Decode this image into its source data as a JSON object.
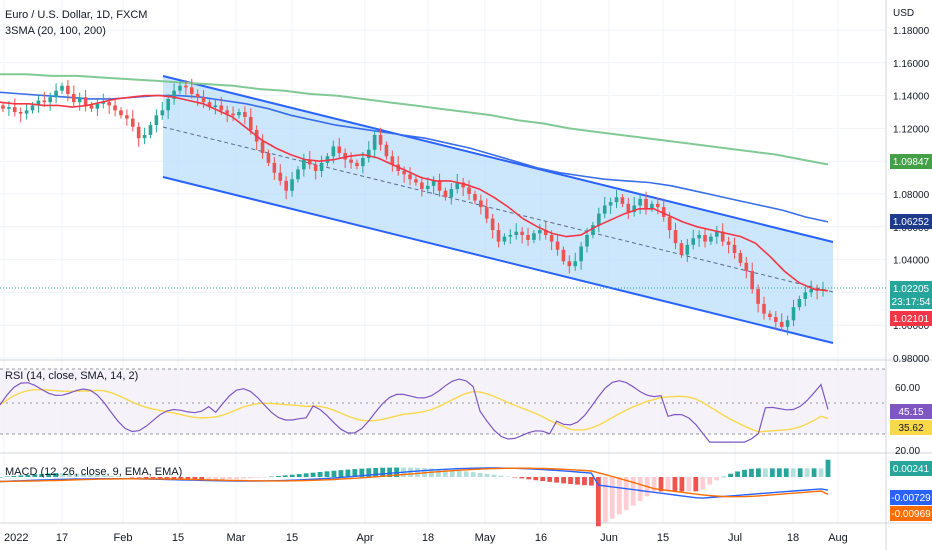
{
  "header": {
    "title": "Euro / U.S. Dollar, 1D, FXCM",
    "indicator": "3SMA (20, 100, 200)",
    "currency": "USD"
  },
  "rsi_panel": {
    "title": "RSI (14, close, SMA, 14, 2)",
    "ticks": [
      "60.00",
      "20.00"
    ],
    "value_badge": "45.15",
    "ma_badge": "35.62"
  },
  "macd_panel": {
    "title": "MACD (12, 26, close, 9, EMA, EMA)",
    "hist_badge": "0.00241",
    "macd_badge": "-0.00729",
    "signal_badge": "-0.00969"
  },
  "price_badges": {
    "sma200": "1.09847",
    "sma100": "1.06252",
    "last": "1.02205",
    "countdown": "23:17:54",
    "sma20": "1.02101"
  },
  "time_axis": [
    "2022",
    "17",
    "Feb",
    "15",
    "Mar",
    "15",
    "Apr",
    "18",
    "May",
    "16",
    "Jun",
    "15",
    "Jul",
    "18",
    "Aug"
  ],
  "colors": {
    "up": "#26a69a",
    "down": "#ef5350",
    "sma20": "#f23645",
    "sma100": "#3a6ee8",
    "sma200": "#81c995",
    "channel": "#2962ff",
    "rsi": "#7e57c2",
    "rsi_ma": "#f9d84a",
    "macd": "#2962ff",
    "signal": "#ff6d00"
  },
  "chart_data": {
    "type": "candlestick",
    "symbol": "EURUSD",
    "price_axis_ticks": [
      1.18,
      1.16,
      1.14,
      1.12,
      1.1,
      1.08,
      1.06,
      1.04,
      1.02,
      1.0,
      0.98
    ],
    "price_range": [
      0.978,
      1.186
    ],
    "candles_close_approx": [
      1.132,
      1.133,
      1.13,
      1.129,
      1.131,
      1.134,
      1.137,
      1.136,
      1.139,
      1.143,
      1.146,
      1.141,
      1.136,
      1.139,
      1.134,
      1.132,
      1.135,
      1.136,
      1.134,
      1.131,
      1.128,
      1.126,
      1.121,
      1.114,
      1.116,
      1.122,
      1.128,
      1.131,
      1.138,
      1.143,
      1.146,
      1.145,
      1.141,
      1.139,
      1.136,
      1.133,
      1.134,
      1.131,
      1.129,
      1.128,
      1.13,
      1.127,
      1.119,
      1.112,
      1.105,
      1.099,
      1.093,
      1.088,
      1.082,
      1.089,
      1.095,
      1.101,
      1.098,
      1.094,
      1.099,
      1.103,
      1.109,
      1.105,
      1.101,
      1.099,
      1.097,
      1.102,
      1.107,
      1.116,
      1.11,
      1.103,
      1.098,
      1.094,
      1.092,
      1.089,
      1.087,
      1.083,
      1.085,
      1.088,
      1.082,
      1.078,
      1.083,
      1.087,
      1.084,
      1.08,
      1.076,
      1.072,
      1.065,
      1.058,
      1.051,
      1.054,
      1.055,
      1.057,
      1.055,
      1.052,
      1.056,
      1.058,
      1.055,
      1.051,
      1.046,
      1.039,
      1.036,
      1.039,
      1.048,
      1.055,
      1.061,
      1.068,
      1.073,
      1.075,
      1.078,
      1.074,
      1.069,
      1.073,
      1.077,
      1.071,
      1.074,
      1.072,
      1.066,
      1.058,
      1.05,
      1.043,
      1.049,
      1.053,
      1.055,
      1.051,
      1.054,
      1.057,
      1.051,
      1.049,
      1.044,
      1.038,
      1.033,
      1.022,
      1.013,
      1.007,
      1.005,
      1.002,
      0.999,
      1.003,
      1.011,
      1.016,
      1.02,
      1.022,
      1.021,
      1.022
    ],
    "sma20_approx": [
      1.136,
      1.135,
      1.135,
      1.134,
      1.134,
      1.133,
      1.134,
      1.136,
      1.138,
      1.139,
      1.14,
      1.14,
      1.139,
      1.137,
      1.135,
      1.131,
      1.127,
      1.12,
      1.113,
      1.108,
      1.104,
      1.101,
      1.1,
      1.101,
      1.103,
      1.104,
      1.102,
      1.098,
      1.094,
      1.09,
      1.088,
      1.088,
      1.086,
      1.083,
      1.078,
      1.072,
      1.065,
      1.06,
      1.056,
      1.054,
      1.055,
      1.06,
      1.064,
      1.068,
      1.071,
      1.071,
      1.067,
      1.063,
      1.06,
      1.058,
      1.056,
      1.054,
      1.05,
      1.042,
      1.033,
      1.026,
      1.022,
      1.021
    ],
    "sma100_approx": [
      1.142,
      1.141,
      1.14,
      1.139,
      1.138,
      1.138,
      1.139,
      1.14,
      1.14,
      1.139,
      1.137,
      1.135,
      1.132,
      1.128,
      1.125,
      1.122,
      1.12,
      1.118,
      1.116,
      1.114,
      1.111,
      1.108,
      1.104,
      1.1,
      1.096,
      1.093,
      1.091,
      1.089,
      1.088,
      1.087,
      1.085,
      1.082,
      1.079,
      1.076,
      1.073,
      1.07,
      1.066,
      1.063
    ],
    "sma200_approx": [
      1.153,
      1.153,
      1.152,
      1.152,
      1.151,
      1.15,
      1.149,
      1.148,
      1.147,
      1.146,
      1.144,
      1.143,
      1.141,
      1.14,
      1.138,
      1.136,
      1.134,
      1.132,
      1.13,
      1.128,
      1.125,
      1.123,
      1.12,
      1.118,
      1.116,
      1.114,
      1.112,
      1.11,
      1.108,
      1.106,
      1.104,
      1.101,
      1.098
    ],
    "channel": {
      "upper": {
        "start": [
          0.1765,
          1.15
        ],
        "end": [
          0.895,
          1.044
        ]
      },
      "middle": {
        "start": [
          0.1765,
          1.12
        ],
        "end": [
          0.895,
          1.017
        ]
      },
      "lower": {
        "start": [
          0.1765,
          1.089
        ],
        "end": [
          0.895,
          0.989
        ]
      }
    },
    "rsi": {
      "range": [
        20,
        80
      ],
      "upper_band": 70,
      "lower_band": 30,
      "value": 45.15,
      "ma": 35.62
    },
    "macd": {
      "hist_last": 0.00241,
      "macd_last": -0.00729,
      "signal_last": -0.00969
    }
  }
}
